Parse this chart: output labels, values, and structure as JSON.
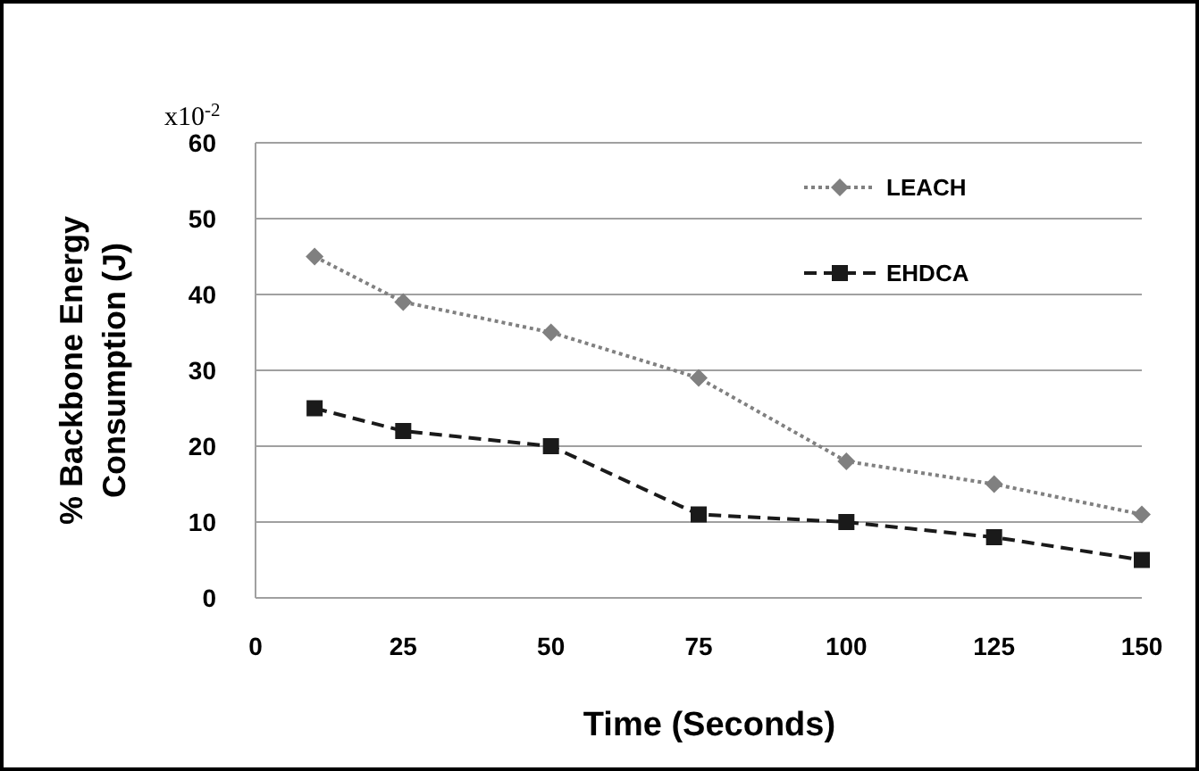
{
  "chart_data": {
    "type": "line",
    "xlabel": "Time (Seconds)",
    "ylabel": "% Backbone Energy Consumption (J)",
    "annotations": [
      "x10$^{-2}$"
    ],
    "x": [
      10,
      25,
      50,
      75,
      100,
      125,
      150
    ],
    "series": [
      {
        "name": "LEACH",
        "color": "#808080",
        "marker": "diamond",
        "line_style": "dotted",
        "values": [
          45,
          39,
          35,
          29,
          18,
          15,
          11
        ]
      },
      {
        "name": "EHDCA",
        "color": "#1a1a1a",
        "marker": "square",
        "line_style": "dashed",
        "values": [
          25,
          22,
          20,
          11,
          10,
          8,
          5
        ]
      }
    ],
    "xlim": [
      0,
      150
    ],
    "xticks": [
      0,
      25,
      50,
      75,
      100,
      125,
      150
    ],
    "ylim": [
      0,
      60
    ],
    "yticks": [
      0,
      10,
      20,
      30,
      40,
      50,
      60
    ],
    "grid": "y",
    "legend": "top right"
  }
}
